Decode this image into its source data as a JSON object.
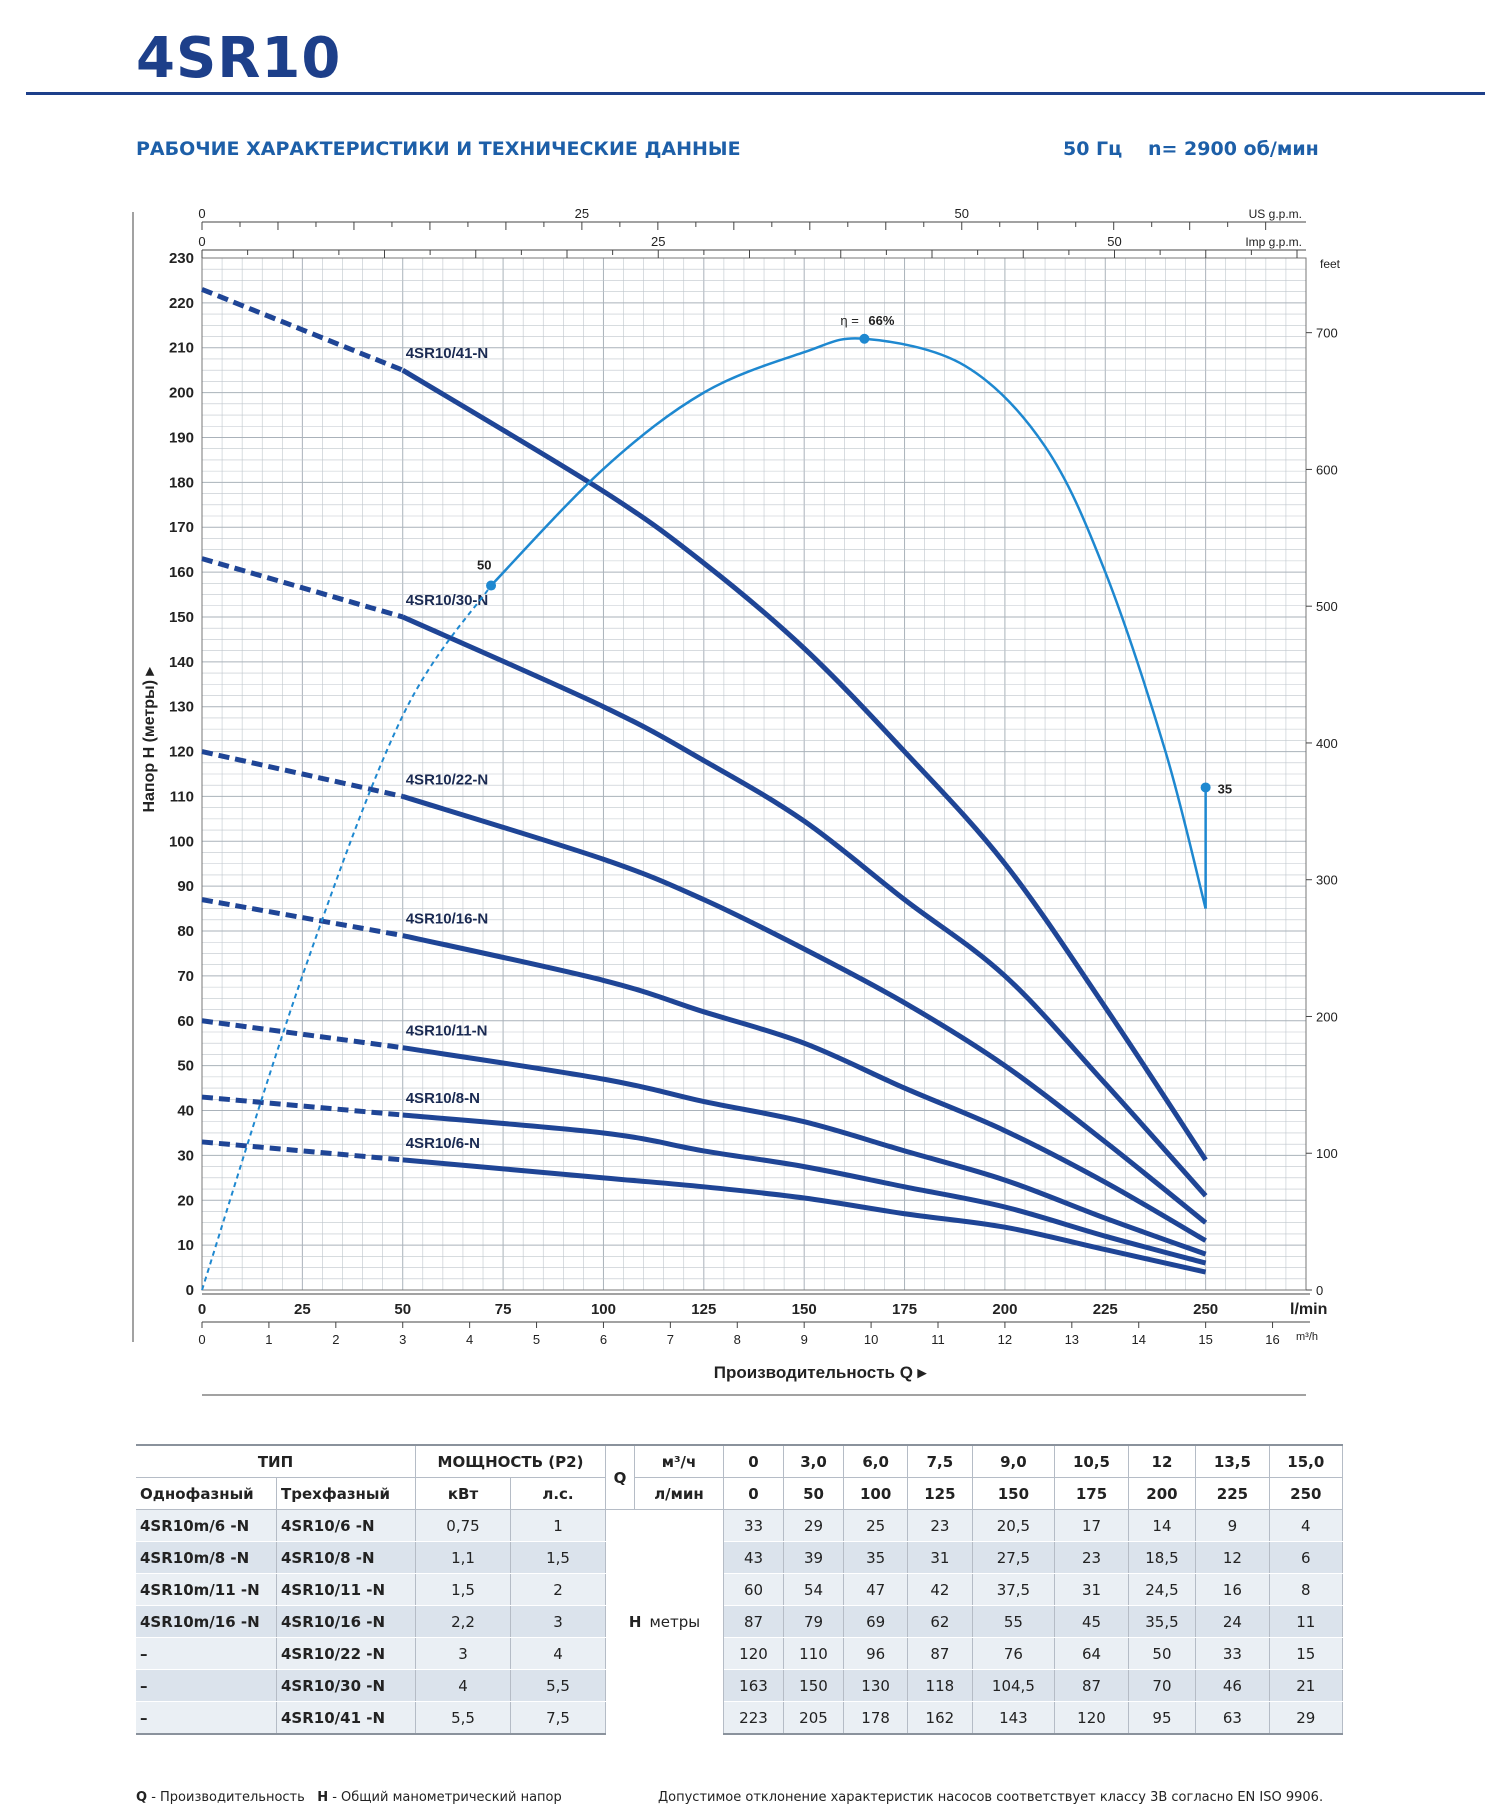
{
  "page": {
    "title": "4SR10",
    "section_title": "РАБОЧИЕ ХАРАКТЕРИСТИКИ И ТЕХНИЧЕСКИЕ ДАННЫЕ",
    "frequency": "50 Гц",
    "speed": "n= 2900 об/мин"
  },
  "colors": {
    "brand": "#1d3f8a",
    "curve": "#1f4596",
    "efficiency": "#1e88d0",
    "grid": "#bfc6cc"
  },
  "chart_data": {
    "type": "line",
    "xlabel": "Производительность Q",
    "ylabel": "Напор H (метры)",
    "x_unit": "l/min",
    "xlim": [
      0,
      275
    ],
    "ylim": [
      0,
      230
    ],
    "y_ticks": [
      0,
      10,
      20,
      30,
      40,
      50,
      60,
      70,
      80,
      90,
      100,
      110,
      120,
      130,
      140,
      150,
      160,
      170,
      180,
      190,
      200,
      210,
      220,
      230
    ],
    "x_ticks": [
      0,
      25,
      50,
      75,
      100,
      125,
      150,
      175,
      200,
      225,
      250
    ],
    "x_tick_labels": [
      "0",
      "25",
      "50",
      "75",
      "100",
      "125",
      "150",
      "175",
      "200",
      "225",
      "250"
    ],
    "secondary_axes": {
      "m3h": {
        "label": "m³/h",
        "ticks": [
          0,
          1,
          2,
          3,
          4,
          5,
          6,
          7,
          8,
          9,
          10,
          11,
          12,
          13,
          14,
          15,
          16
        ],
        "tick_labels": [
          "0",
          "1",
          "2",
          "3",
          "4",
          "5",
          "6",
          "7",
          "8",
          "9",
          "10",
          "11",
          "12",
          "13",
          "14",
          "15",
          "16"
        ]
      },
      "us_gpm": {
        "label": "US g.p.m.",
        "ticks": [
          0,
          25,
          50
        ],
        "tick_labels": [
          "0",
          "25",
          "50"
        ]
      },
      "imp_gpm": {
        "label": "Imp g.p.m.",
        "ticks": [
          0,
          25,
          50
        ],
        "tick_labels": [
          "0",
          "25",
          "50"
        ]
      },
      "feet": {
        "label": "feet",
        "ticks": [
          0,
          100,
          200,
          300,
          400,
          500,
          600,
          700
        ],
        "tick_labels": [
          "0",
          "100",
          "200",
          "300",
          "400",
          "500",
          "600",
          "700"
        ]
      }
    },
    "x": [
      0,
      50,
      100,
      125,
      150,
      175,
      200,
      225,
      250
    ],
    "series": [
      {
        "name": "4SR10/41-N",
        "values": [
          223,
          205,
          178,
          162,
          143,
          120,
          95,
          63,
          29
        ]
      },
      {
        "name": "4SR10/30-N",
        "values": [
          163,
          150,
          130,
          118,
          104.5,
          87,
          70,
          46,
          21
        ]
      },
      {
        "name": "4SR10/22-N",
        "values": [
          120,
          110,
          96,
          87,
          76,
          64,
          50,
          33,
          15
        ]
      },
      {
        "name": "4SR10/16-N",
        "values": [
          87,
          79,
          69,
          62,
          55,
          45,
          35.5,
          24,
          11
        ]
      },
      {
        "name": "4SR10/11-N",
        "values": [
          60,
          54,
          47,
          42,
          37.5,
          31,
          24.5,
          16,
          8
        ]
      },
      {
        "name": "4SR10/8-N",
        "values": [
          43,
          39,
          35,
          31,
          27.5,
          23,
          18.5,
          12,
          6
        ]
      },
      {
        "name": "4SR10/6-N",
        "values": [
          33,
          29,
          25,
          23,
          20.5,
          17,
          14,
          9,
          4
        ]
      }
    ],
    "efficiency": {
      "label_prefix": "η = ",
      "label_value": "66%",
      "points_label": [
        "50",
        "35"
      ],
      "curve": [
        [
          0,
          0
        ],
        [
          25,
          70
        ],
        [
          50,
          128
        ],
        [
          72,
          157
        ],
        [
          100,
          183
        ],
        [
          125,
          200
        ],
        [
          150,
          209
        ],
        [
          165,
          212
        ],
        [
          190,
          206
        ],
        [
          210,
          188
        ],
        [
          225,
          160
        ],
        [
          240,
          120
        ],
        [
          250,
          85
        ]
      ],
      "markers": [
        {
          "x": 72,
          "y": 157,
          "label": "50"
        },
        {
          "x": 165,
          "y": 212,
          "label": "η = 66%"
        },
        {
          "x": 250,
          "y": 112,
          "label": "35"
        }
      ]
    }
  },
  "table": {
    "h_type": "ТИП",
    "h_power": "МОЩНОСТЬ (P2)",
    "h_single": "Однофазный",
    "h_three": "Трехфазный",
    "h_kw": "кВт",
    "h_hp": "л.с.",
    "h_q": "Q",
    "h_m3h": "м³/ч",
    "h_lmin": "л/мин",
    "q_m3h": [
      "0",
      "3,0",
      "6,0",
      "7,5",
      "9,0",
      "10,5",
      "12",
      "13,5",
      "15,0"
    ],
    "q_lmin": [
      "0",
      "50",
      "100",
      "125",
      "150",
      "175",
      "200",
      "225",
      "250"
    ],
    "h_label": "H",
    "h_unit": "метры",
    "rows": [
      {
        "single": "4SR10m/6 -N",
        "three": "4SR10/6 -N",
        "kw": "0,75",
        "hp": "1",
        "h": [
          "33",
          "29",
          "25",
          "23",
          "20,5",
          "17",
          "14",
          "9",
          "4"
        ]
      },
      {
        "single": "4SR10m/8 -N",
        "three": "4SR10/8 -N",
        "kw": "1,1",
        "hp": "1,5",
        "h": [
          "43",
          "39",
          "35",
          "31",
          "27,5",
          "23",
          "18,5",
          "12",
          "6"
        ]
      },
      {
        "single": "4SR10m/11 -N",
        "three": "4SR10/11 -N",
        "kw": "1,5",
        "hp": "2",
        "h": [
          "60",
          "54",
          "47",
          "42",
          "37,5",
          "31",
          "24,5",
          "16",
          "8"
        ]
      },
      {
        "single": "4SR10m/16 -N",
        "three": "4SR10/16 -N",
        "kw": "2,2",
        "hp": "3",
        "h": [
          "87",
          "79",
          "69",
          "62",
          "55",
          "45",
          "35,5",
          "24",
          "11"
        ]
      },
      {
        "single": "–",
        "three": "4SR10/22 -N",
        "kw": "3",
        "hp": "4",
        "h": [
          "120",
          "110",
          "96",
          "87",
          "76",
          "64",
          "50",
          "33",
          "15"
        ]
      },
      {
        "single": "–",
        "three": "4SR10/30 -N",
        "kw": "4",
        "hp": "5,5",
        "h": [
          "163",
          "150",
          "130",
          "118",
          "104,5",
          "87",
          "70",
          "46",
          "21"
        ]
      },
      {
        "single": "–",
        "three": "4SR10/41 -N",
        "kw": "5,5",
        "hp": "7,5",
        "h": [
          "223",
          "205",
          "178",
          "162",
          "143",
          "120",
          "95",
          "63",
          "29"
        ]
      }
    ]
  },
  "footer": {
    "q_key": "Q",
    "q_desc": " - Производительность",
    "h_key": "H",
    "h_desc": " - Общий манометрический напор",
    "note": "Допустимое отклонение характеристик насосов соответствует классу 3B согласно EN ISO 9906."
  }
}
